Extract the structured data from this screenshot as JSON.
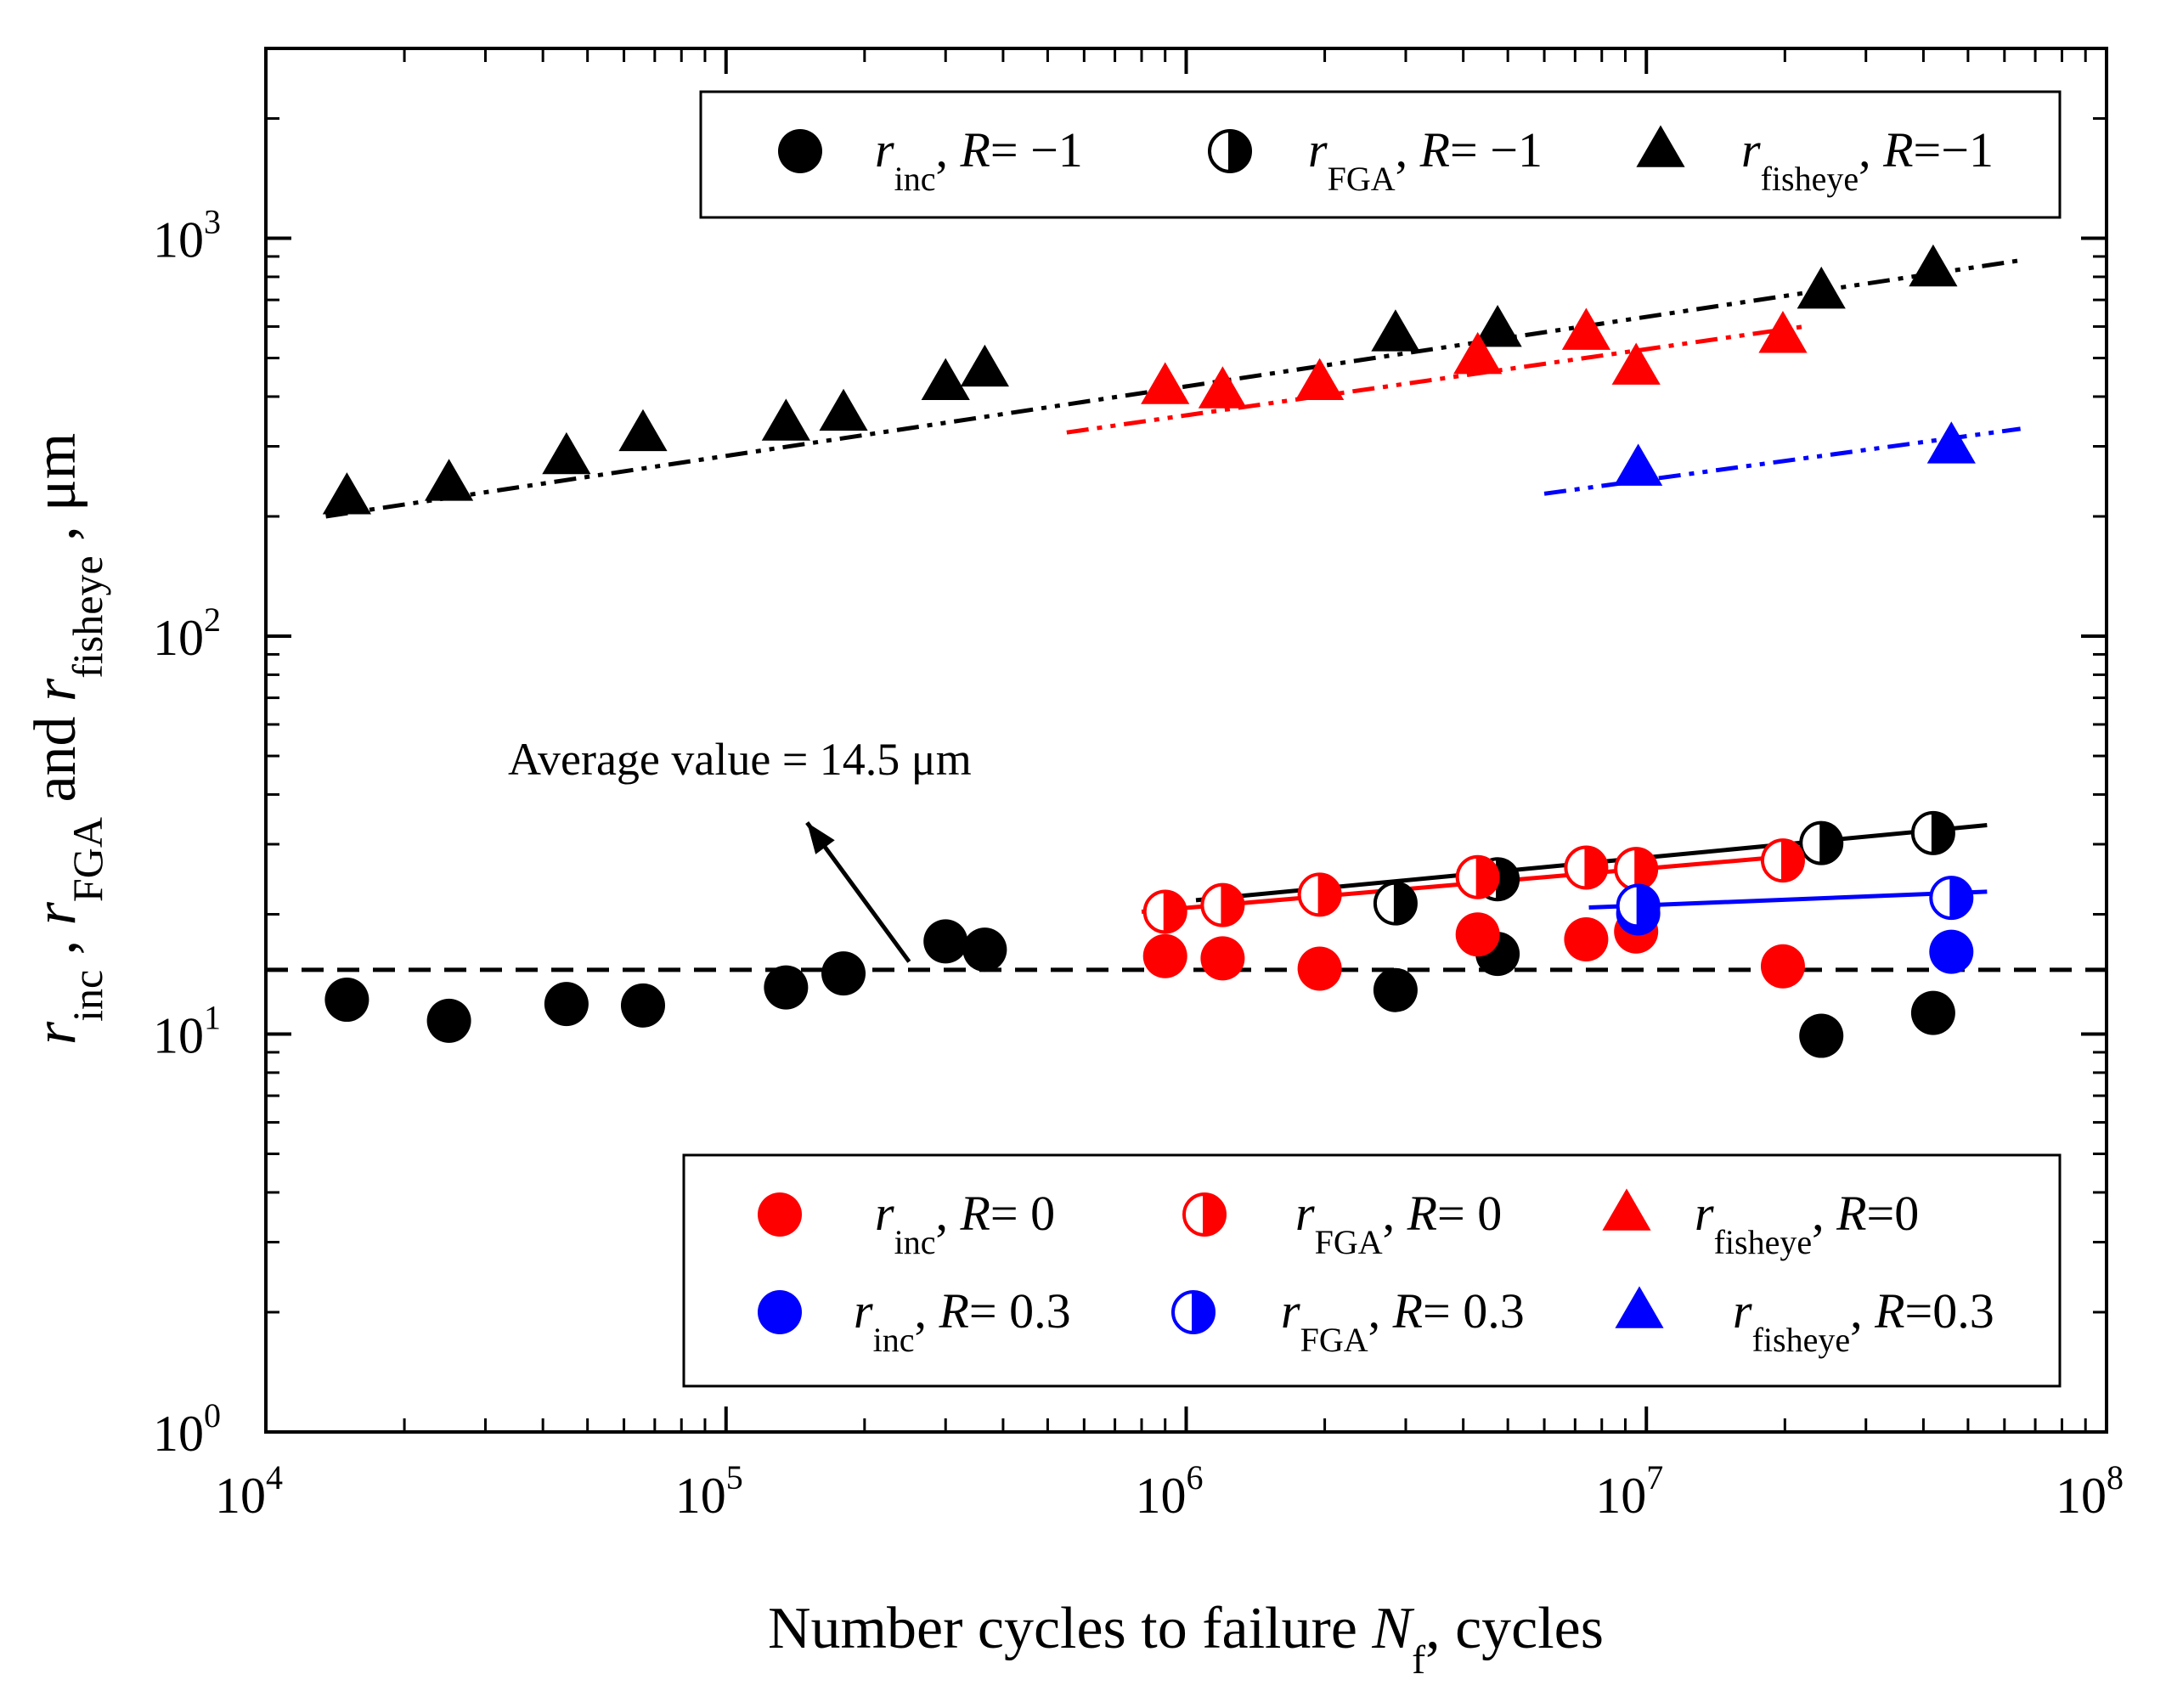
{
  "chart_data": {
    "type": "scatter",
    "title": "",
    "xlabel": {
      "prefix": "Number cycles to failure ",
      "symbol": "N",
      "subscript": "f",
      "suffix": ", cycles"
    },
    "ylabel": {
      "parts": [
        {
          "r": "r",
          "sub": "inc",
          "sep": " , "
        },
        {
          "r": "r",
          "sub": "FGA",
          "sep": " and "
        },
        {
          "r": "r",
          "sub": "fisheye",
          "sep": " , μm"
        }
      ]
    },
    "x_scale": "log",
    "y_scale": "log",
    "xlim": [
      10000,
      100000000
    ],
    "ylim": [
      1,
      3000
    ],
    "x_ticks": [
      {
        "value": 10000,
        "base": "10",
        "exp": "4"
      },
      {
        "value": 100000,
        "base": "10",
        "exp": "5"
      },
      {
        "value": 1000000,
        "base": "10",
        "exp": "6"
      },
      {
        "value": 10000000,
        "base": "10",
        "exp": "7"
      },
      {
        "value": 100000000,
        "base": "10",
        "exp": "8"
      }
    ],
    "y_ticks": [
      {
        "value": 1,
        "base": "10",
        "exp": "0"
      },
      {
        "value": 10,
        "base": "10",
        "exp": "1"
      },
      {
        "value": 100,
        "base": "10",
        "exp": "2"
      },
      {
        "value": 1000,
        "base": "10",
        "exp": "3"
      }
    ],
    "grid": false,
    "colors": {
      "black": "#000000",
      "red": "#ff0000",
      "blue": "#0000ff"
    },
    "series": [
      {
        "key": "inc_m1",
        "name_r": "r",
        "name_sub": "inc",
        "name_R": "R",
        "name_val": "= −1",
        "marker": "circle",
        "color": "#000000",
        "points": [
          [
            15000,
            12.2
          ],
          [
            25000,
            10.8
          ],
          [
            45000,
            11.9
          ],
          [
            66000,
            11.8
          ],
          [
            135000,
            13.1
          ],
          [
            180000,
            14.2
          ],
          [
            300000,
            17.1
          ],
          [
            365000,
            16.3
          ],
          [
            2850000,
            12.9
          ],
          [
            4750000,
            15.9
          ],
          [
            24000000,
            9.9
          ],
          [
            42000000,
            11.3
          ]
        ]
      },
      {
        "key": "fga_m1",
        "name_r": "r",
        "name_sub": "FGA",
        "name_R": "R",
        "name_val": "= −1",
        "marker": "half",
        "color": "#000000",
        "points": [
          [
            2850000,
            21.3
          ],
          [
            4750000,
            24.5
          ],
          [
            24000000,
            30.2
          ],
          [
            42000000,
            32.0
          ]
        ]
      },
      {
        "key": "fish_m1",
        "name_r": "r",
        "name_sub": "fisheye",
        "name_R": "R",
        "name_val": "=−1",
        "marker": "triangle",
        "color": "#000000",
        "points": [
          [
            15000,
            222
          ],
          [
            25000,
            240
          ],
          [
            45000,
            280
          ],
          [
            66000,
            320
          ],
          [
            135000,
            340
          ],
          [
            180000,
            360
          ],
          [
            300000,
            430
          ],
          [
            365000,
            465
          ],
          [
            2850000,
            570
          ],
          [
            4750000,
            585
          ],
          [
            24000000,
            730
          ],
          [
            42000000,
            830
          ]
        ]
      },
      {
        "key": "inc_0",
        "name_r": "r",
        "name_sub": "inc",
        "name_R": "R",
        "name_val": "= 0",
        "marker": "circle",
        "color": "#ff0000",
        "points": [
          [
            900000,
            15.7
          ],
          [
            1200000,
            15.5
          ],
          [
            1950000,
            14.6
          ],
          [
            4300000,
            17.8
          ],
          [
            7400000,
            17.3
          ],
          [
            9500000,
            18.1
          ],
          [
            19800000,
            14.8
          ]
        ]
      },
      {
        "key": "fga_0",
        "name_r": "r",
        "name_sub": "FGA",
        "name_R": "R",
        "name_val": "= 0",
        "marker": "half",
        "color": "#ff0000",
        "points": [
          [
            900000,
            20.3
          ],
          [
            1200000,
            21.1
          ],
          [
            1950000,
            22.4
          ],
          [
            4300000,
            24.8
          ],
          [
            7400000,
            26.2
          ],
          [
            9500000,
            26.0
          ],
          [
            19800000,
            27.3
          ]
        ]
      },
      {
        "key": "fish_0",
        "name_r": "r",
        "name_sub": "fisheye",
        "name_R": "R",
        "name_val": "=0",
        "marker": "triangle",
        "color": "#ff0000",
        "points": [
          [
            900000,
            420
          ],
          [
            1200000,
            410
          ],
          [
            1950000,
            430
          ],
          [
            4300000,
            500
          ],
          [
            7400000,
            575
          ],
          [
            9500000,
            470
          ],
          [
            19800000,
            565
          ]
        ]
      },
      {
        "key": "inc_03",
        "name_r": "r",
        "name_sub": "inc",
        "name_R": "R",
        "name_val": "= 0.3",
        "marker": "circle",
        "color": "#0000ff",
        "points": [
          [
            9600000,
            20.1
          ],
          [
            46000000,
            16.1
          ]
        ]
      },
      {
        "key": "fga_03",
        "name_r": "r",
        "name_sub": "FGA",
        "name_R": "R",
        "name_val": "= 0.3",
        "marker": "half",
        "color": "#0000ff",
        "points": [
          [
            9600000,
            21.0
          ],
          [
            46000000,
            22.0
          ]
        ]
      },
      {
        "key": "fish_03",
        "name_r": "r",
        "name_sub": "fisheye",
        "name_R": "R",
        "name_val": "=0.3",
        "marker": "triangle",
        "color": "#0000ff",
        "points": [
          [
            9600000,
            262
          ],
          [
            46000000,
            298
          ]
        ]
      }
    ],
    "fit_lines": [
      {
        "key": "fit-fish-m1",
        "color": "#000000",
        "style": "dashdotdot",
        "from": [
          13500,
          200
        ],
        "to": [
          65000000,
          880
        ]
      },
      {
        "key": "fit-fish-0",
        "color": "#ff0000",
        "style": "dashdotdot",
        "from": [
          550000,
          325
        ],
        "to": [
          22000000,
          600
        ]
      },
      {
        "key": "fit-fish-03",
        "color": "#0000ff",
        "style": "dashdotdot",
        "from": [
          6000000,
          228
        ],
        "to": [
          65000000,
          332
        ]
      },
      {
        "key": "fit-fga-m1",
        "color": "#000000",
        "style": "solid",
        "from": [
          1050000,
          21.7
        ],
        "to": [
          55000000,
          33.5
        ]
      },
      {
        "key": "fit-fga-0",
        "color": "#ff0000",
        "style": "solid",
        "from": [
          800000,
          20.3
        ],
        "to": [
          20500000,
          28.0
        ]
      },
      {
        "key": "fit-fga-03",
        "color": "#0000ff",
        "style": "solid",
        "from": [
          7500000,
          20.8
        ],
        "to": [
          55000000,
          22.8
        ]
      }
    ],
    "average_line": {
      "value": 14.5,
      "style": "dashed",
      "color": "#000000"
    },
    "annotation": {
      "text": "Average value = 14.5 μm",
      "arrow_from": [
        250000,
        15.2
      ],
      "arrow_to": [
        150000,
        34
      ]
    },
    "legend_top": {
      "placement": "top",
      "items": [
        "inc_m1",
        "fga_m1",
        "fish_m1"
      ]
    },
    "legend_bottom": {
      "placement": "bottom-right",
      "items": [
        "inc_0",
        "fga_0",
        "fish_0",
        "inc_03",
        "fga_03",
        "fish_03"
      ]
    }
  }
}
